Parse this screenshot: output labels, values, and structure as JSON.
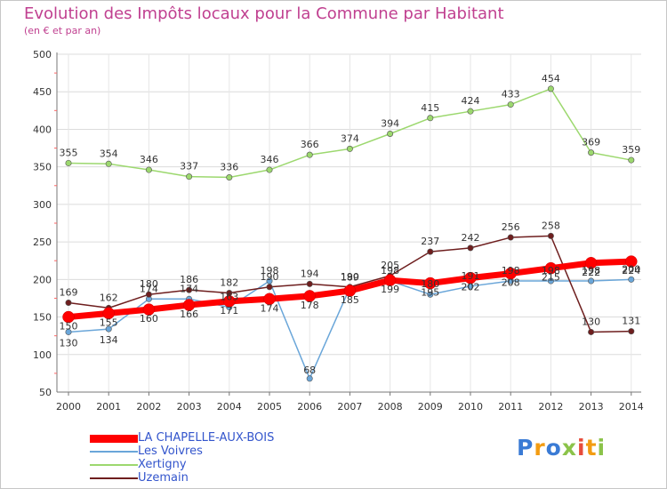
{
  "title": "Evolution des Impôts locaux pour la Commune par Habitant",
  "subtitle": "(en € et par an)",
  "brand": "Proxiti",
  "chart_data": {
    "type": "line",
    "title": "Evolution des Impôts locaux pour la Commune par Habitant",
    "subtitle": "(en € et par an)",
    "xlabel": "",
    "ylabel": "",
    "x": [
      "2000",
      "2001",
      "2002",
      "2003",
      "2004",
      "2005",
      "2006",
      "2007",
      "2008",
      "2009",
      "2010",
      "2011",
      "2012",
      "2013",
      "2014"
    ],
    "ylim": [
      50,
      500
    ],
    "yticks": [
      50,
      100,
      150,
      200,
      250,
      300,
      350,
      400,
      450,
      500
    ],
    "grid": "horizontal",
    "legend_position": "bottom",
    "series": [
      {
        "name": "LA CHAPELLE-AUX-BOIS",
        "color": "#ff0000",
        "width": 7,
        "values": [
          150,
          155,
          160,
          166,
          171,
          174,
          178,
          185,
          199,
          195,
          202,
          208,
          215,
          222,
          224
        ]
      },
      {
        "name": "Les Voivres",
        "color": "#6aa6d9",
        "width": 1.5,
        "values": [
          130,
          134,
          174,
          174,
          163,
          198,
          68,
          189,
          198,
          180,
          191,
          198,
          198,
          198,
          200
        ]
      },
      {
        "name": "Xertigny",
        "color": "#9cd86e",
        "width": 1.5,
        "values": [
          355,
          354,
          346,
          337,
          336,
          346,
          366,
          374,
          394,
          415,
          424,
          433,
          454,
          369,
          359
        ]
      },
      {
        "name": "Uzemain",
        "color": "#6e1e1e",
        "width": 1.5,
        "values": [
          169,
          162,
          180,
          186,
          182,
          190,
          194,
          190,
          205,
          237,
          242,
          256,
          258,
          130,
          131
        ]
      }
    ]
  }
}
